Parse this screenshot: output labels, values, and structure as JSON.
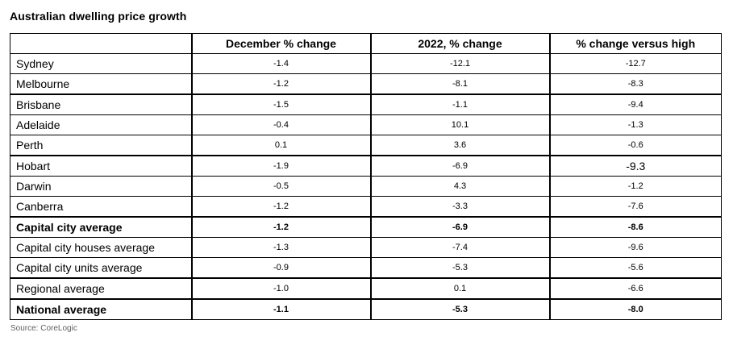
{
  "title": "Australian dwelling price growth",
  "source": "Source: CoreLogic",
  "table": {
    "corner_label": "",
    "headers": [
      "December % change",
      "2022, % change",
      "% change versus high"
    ],
    "rows": [
      {
        "label": "Sydney",
        "values": [
          "-1.4",
          "-12.1",
          "-12.7"
        ]
      },
      {
        "label": "Melbourne",
        "values": [
          "-1.2",
          "-8.1",
          "-8.3"
        ]
      },
      {
        "label": "Brisbane",
        "values": [
          "-1.5",
          "-1.1",
          "-9.4"
        ]
      },
      {
        "label": "Adelaide",
        "values": [
          "-0.4",
          "10.1",
          "-1.3"
        ]
      },
      {
        "label": "Perth",
        "values": [
          "0.1",
          "3.6",
          "-0.6"
        ]
      },
      {
        "label": "Hobart",
        "values": [
          "-1.9",
          "-6.9",
          "-9.3"
        ]
      },
      {
        "label": "Darwin",
        "values": [
          "-0.5",
          "4.3",
          "-1.2"
        ]
      },
      {
        "label": "Canberra",
        "values": [
          "-1.2",
          "-3.3",
          "-7.6"
        ]
      },
      {
        "label": "Capital city average",
        "values": [
          "-1.2",
          "-6.9",
          "-8.6"
        ]
      },
      {
        "label": "Capital city houses average",
        "values": [
          "-1.3",
          "-7.4",
          "-9.6"
        ]
      },
      {
        "label": "Capital city units average",
        "values": [
          "-0.9",
          "-5.3",
          "-5.6"
        ]
      },
      {
        "label": "Regional average",
        "values": [
          "-1.0",
          "0.1",
          "-6.6"
        ]
      },
      {
        "label": "National average",
        "values": [
          "-1.1",
          "-5.3",
          "-8.0"
        ]
      }
    ]
  },
  "chart_data": {
    "type": "table",
    "title": "Australian dwelling price growth",
    "columns": [
      "",
      "December % change",
      "2022, % change",
      "% change versus high"
    ],
    "rows": [
      [
        "Sydney",
        -1.4,
        -12.1,
        -12.7
      ],
      [
        "Melbourne",
        -1.2,
        -8.1,
        -8.3
      ],
      [
        "Brisbane",
        -1.5,
        -1.1,
        -9.4
      ],
      [
        "Adelaide",
        -0.4,
        10.1,
        -1.3
      ],
      [
        "Perth",
        0.1,
        3.6,
        -0.6
      ],
      [
        "Hobart",
        -1.9,
        -6.9,
        -9.3
      ],
      [
        "Darwin",
        -0.5,
        4.3,
        -1.2
      ],
      [
        "Canberra",
        -1.2,
        -3.3,
        -7.6
      ],
      [
        "Capital city average",
        -1.2,
        -6.9,
        -8.6
      ],
      [
        "Capital city houses average",
        -1.3,
        -7.4,
        -9.6
      ],
      [
        "Capital city units average",
        -0.9,
        -5.3,
        -5.6
      ],
      [
        "Regional average",
        -1.0,
        0.1,
        -6.6
      ],
      [
        "National average",
        -1.1,
        -5.3,
        -8.0
      ]
    ],
    "bold_rows": [
      "Capital city average",
      "National average"
    ],
    "source": "Source: CoreLogic"
  }
}
